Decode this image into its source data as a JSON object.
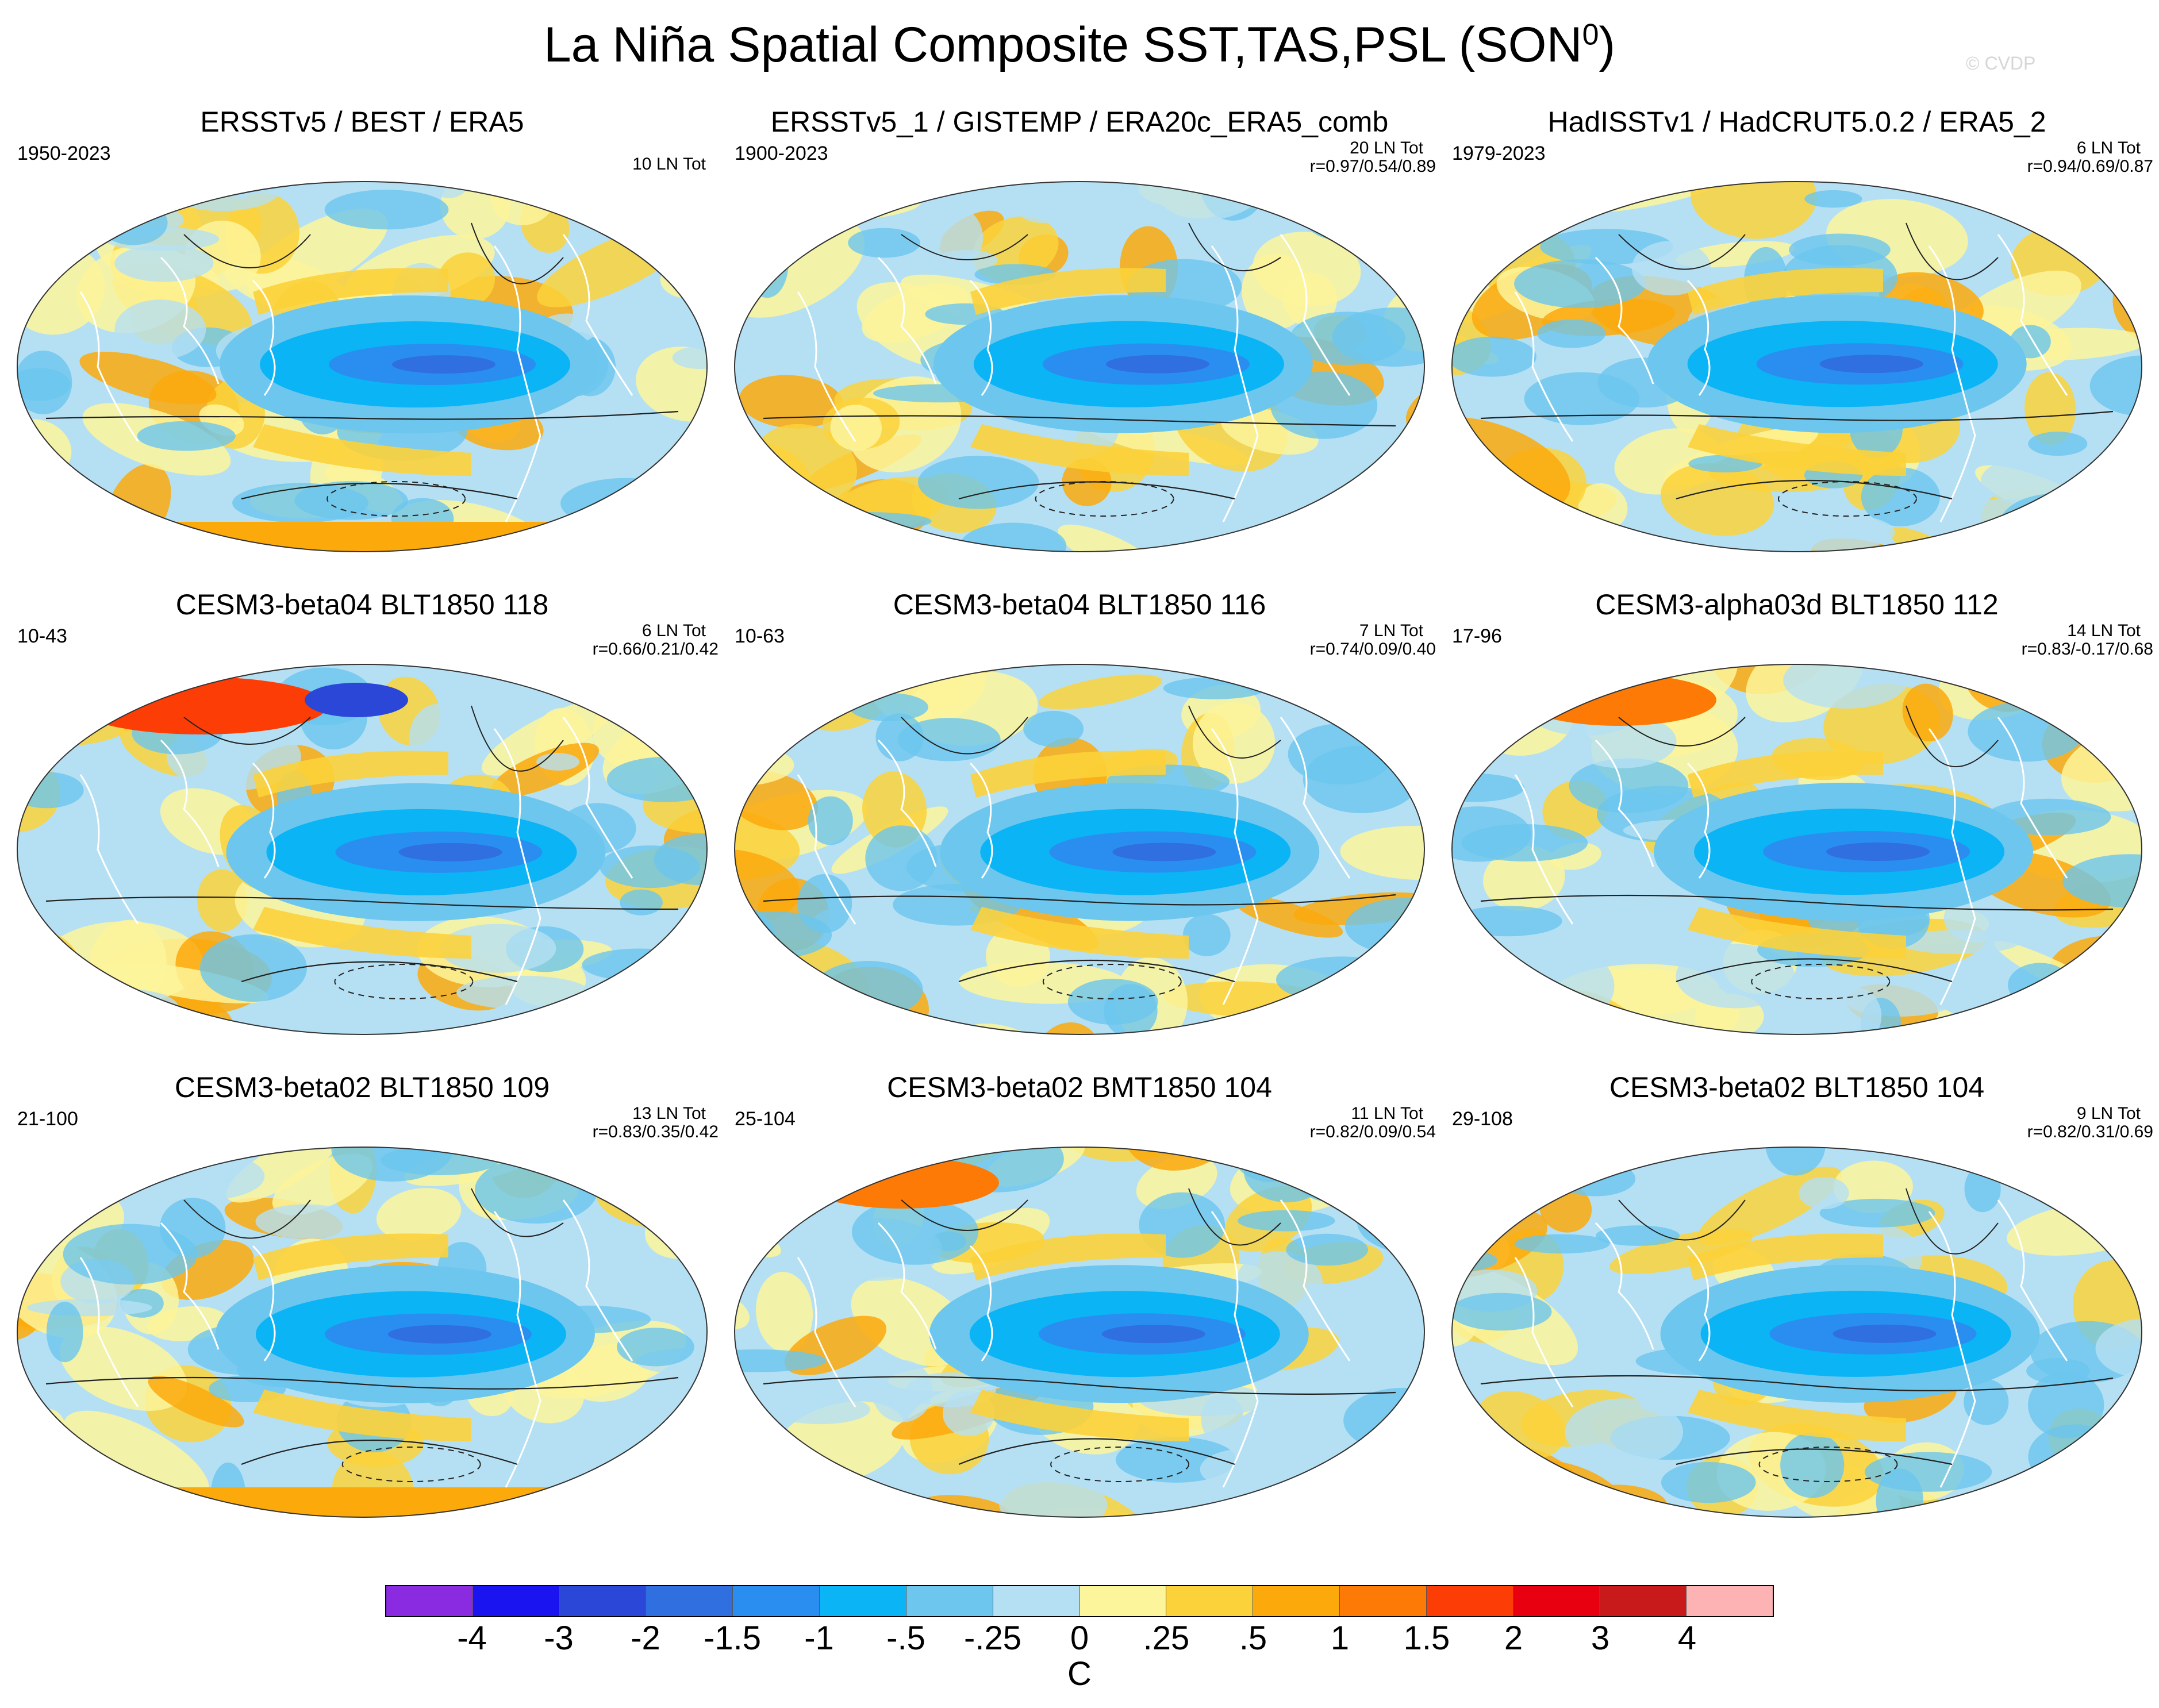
{
  "title": {
    "text": "La Niña Spatial Composite SST,TAS,PSL (SON",
    "sup": "0",
    "close": ")"
  },
  "watermark": "© CVDP",
  "panels": [
    {
      "title": "ERSSTv5 / BEST / ERA5",
      "years": "1950-2023",
      "ntot": "10 LN Tot",
      "corr": "",
      "variant": 0
    },
    {
      "title": "ERSSTv5_1 / GISTEMP / ERA20c_ERA5_comb",
      "years": "1900-2023",
      "ntot": "20 LN Tot",
      "corr": "r=0.97/0.54/0.89",
      "variant": 1
    },
    {
      "title": "HadISSTv1 / HadCRUT5.0.2 / ERA5_2",
      "years": "1979-2023",
      "ntot": "6 LN Tot",
      "corr": "r=0.94/0.69/0.87",
      "variant": 2
    },
    {
      "title": "CESM3-beta04 BLT1850 118",
      "years": "10-43",
      "ntot": "6 LN Tot",
      "corr": "r=0.66/0.21/0.42",
      "variant": 3
    },
    {
      "title": "CESM3-beta04 BLT1850 116",
      "years": "10-63",
      "ntot": "7 LN Tot",
      "corr": "r=0.74/0.09/0.40",
      "variant": 4
    },
    {
      "title": "CESM3-alpha03d BLT1850 112",
      "years": "17-96",
      "ntot": "14 LN Tot",
      "corr": "r=0.83/-0.17/0.68",
      "variant": 5
    },
    {
      "title": "CESM3-beta02 BLT1850 109",
      "years": "21-100",
      "ntot": "13 LN Tot",
      "corr": "r=0.83/0.35/0.42",
      "variant": 6
    },
    {
      "title": "CESM3-beta02 BMT1850 104",
      "years": "25-104",
      "ntot": "11 LN Tot",
      "corr": "r=0.82/0.09/0.54",
      "variant": 7
    },
    {
      "title": "CESM3-beta02 BLT1850 104",
      "years": "29-108",
      "ntot": "9 LN Tot",
      "corr": "r=0.82/0.31/0.69",
      "variant": 8
    }
  ],
  "colorbar": {
    "colors": [
      "#8a2be2",
      "#1a14f0",
      "#2a47d8",
      "#2f6fe0",
      "#2a8ef0",
      "#0ab4f5",
      "#6cc6ee",
      "#b5e0f4",
      "#fdf59b",
      "#fcd23a",
      "#fca90c",
      "#fc7a05",
      "#fc3d05",
      "#e80010",
      "#c81a1a",
      "#fdb3b3"
    ],
    "labels": [
      "-4",
      "-3",
      "-2",
      "-1.5",
      "-1",
      "-.5",
      "-.25",
      "0",
      ".25",
      ".5",
      "1",
      "1.5",
      "2",
      "3",
      "4"
    ],
    "units": "C"
  }
}
